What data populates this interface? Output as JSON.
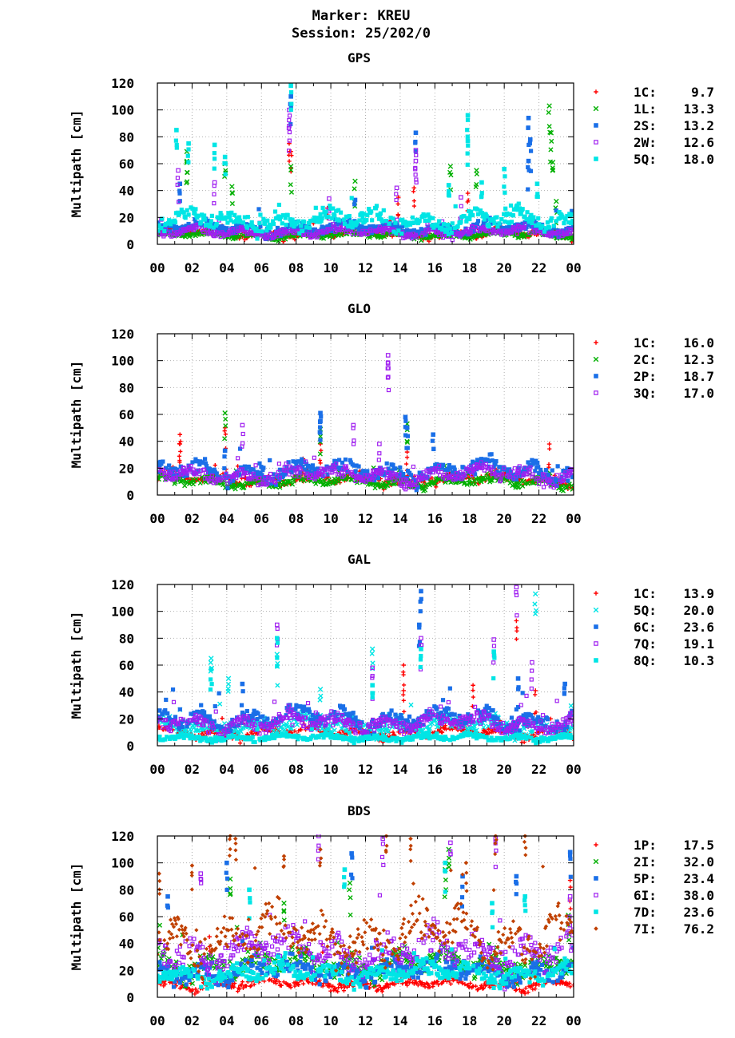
{
  "header": {
    "marker": "Marker: KREU",
    "session": "Session: 25/202/0"
  },
  "style": {
    "marker_colors": {
      "1C": "#ff0000",
      "1L": "#00b000",
      "2S": "#1a6fe8",
      "2W": "#a020f0",
      "5Q": "#00e5e5",
      "2C": "#00b000",
      "2P": "#1a6fe8",
      "3Q": "#a020f0",
      "6C": "#1a6fe8",
      "7Q": "#a020f0",
      "8Q": "#00e5e5",
      "1P": "#ff0000",
      "2I": "#00b000",
      "5P": "#1a6fe8",
      "6I": "#a020f0",
      "7D": "#00e5e5",
      "7I": "#c04000"
    },
    "marker_shapes": [
      "plus",
      "cross",
      "filled-square",
      "open-square",
      "filled-square",
      "filled-diamond"
    ]
  },
  "chart_data": [
    {
      "type": "scatter",
      "title": "GPS",
      "ylabel": "Multipath [cm]",
      "xlabel": "",
      "ylim": [
        0,
        120
      ],
      "yticks": [
        "0",
        "20",
        "40",
        "60",
        "80",
        "100",
        "120"
      ],
      "xticks": [
        "00",
        "02",
        "04",
        "06",
        "08",
        "10",
        "12",
        "14",
        "16",
        "18",
        "20",
        "22",
        "00"
      ],
      "xlim_hours": [
        0,
        24
      ],
      "grid": true,
      "legend_position": "right",
      "series": [
        {
          "name": "1C",
          "stat": "9.7",
          "baseline": 8,
          "spikes": [
            [
              7.6,
              75
            ],
            [
              7.7,
              69
            ],
            [
              9.8,
              27
            ],
            [
              14.8,
              42
            ],
            [
              13.9,
              35
            ],
            [
              17.9,
              38
            ]
          ]
        },
        {
          "name": "1L",
          "stat": "13.3",
          "baseline": 7,
          "spikes": [
            [
              1.7,
              69
            ],
            [
              1.7,
              61
            ],
            [
              3.9,
              60
            ],
            [
              4.3,
              43
            ],
            [
              7.7,
              58
            ],
            [
              11.4,
              47
            ],
            [
              16.9,
              58
            ],
            [
              18.4,
              55
            ],
            [
              22.6,
              103
            ],
            [
              22.7,
              83
            ],
            [
              22.8,
              61
            ],
            [
              23.0,
              32
            ]
          ]
        },
        {
          "name": "2S",
          "stat": "13.2",
          "baseline": 12,
          "spikes": [
            [
              7.7,
              110
            ],
            [
              14.9,
              83
            ],
            [
              21.4,
              94
            ],
            [
              21.5,
              78
            ],
            [
              21.4,
              62
            ],
            [
              1.3,
              45
            ],
            [
              11.4,
              33
            ]
          ]
        },
        {
          "name": "2W",
          "stat": "12.6",
          "baseline": 9,
          "spikes": [
            [
              7.6,
              100
            ],
            [
              7.6,
              88
            ],
            [
              1.2,
              55
            ],
            [
              3.3,
              46
            ],
            [
              14.9,
              70
            ],
            [
              14.9,
              62
            ],
            [
              13.8,
              42
            ],
            [
              9.9,
              34
            ],
            [
              17.5,
              35
            ]
          ]
        },
        {
          "name": "5Q",
          "stat": "18.0",
          "baseline": 18,
          "spikes": [
            [
              1.1,
              85
            ],
            [
              1.8,
              75
            ],
            [
              3.3,
              74
            ],
            [
              3.9,
              65
            ],
            [
              7.7,
              118
            ],
            [
              17.9,
              96
            ],
            [
              17.9,
              77
            ],
            [
              20.0,
              56
            ],
            [
              21.9,
              45
            ],
            [
              16.8,
              44
            ],
            [
              18.7,
              46
            ]
          ]
        }
      ]
    },
    {
      "type": "scatter",
      "title": "GLO",
      "ylabel": "Multipath [cm]",
      "xlabel": "",
      "ylim": [
        0,
        120
      ],
      "yticks": [
        "0",
        "20",
        "40",
        "60",
        "80",
        "100",
        "120"
      ],
      "xticks": [
        "00",
        "02",
        "04",
        "06",
        "08",
        "10",
        "12",
        "14",
        "16",
        "18",
        "20",
        "22",
        "00"
      ],
      "xlim_hours": [
        0,
        24
      ],
      "grid": true,
      "legend_position": "right",
      "series": [
        {
          "name": "1C",
          "stat": "16.0",
          "baseline": 12,
          "spikes": [
            [
              1.3,
              45
            ],
            [
              1.3,
              38
            ],
            [
              3.9,
              50
            ],
            [
              9.4,
              38
            ],
            [
              14.4,
              32
            ],
            [
              22.6,
              38
            ],
            [
              8.4,
              27
            ]
          ]
        },
        {
          "name": "2C",
          "stat": "12.3",
          "baseline": 10,
          "spikes": [
            [
              3.9,
              61
            ],
            [
              9.4,
              49
            ],
            [
              14.4,
              53
            ]
          ]
        },
        {
          "name": "2P",
          "stat": "18.7",
          "baseline": 18,
          "spikes": [
            [
              9.4,
              61
            ],
            [
              9.4,
              55
            ],
            [
              14.3,
              58
            ],
            [
              14.4,
              50
            ],
            [
              15.9,
              45
            ],
            [
              3.9,
              33
            ]
          ]
        },
        {
          "name": "3Q",
          "stat": "17.0",
          "baseline": 15,
          "spikes": [
            [
              13.3,
              104
            ],
            [
              13.3,
              98
            ],
            [
              4.9,
              52
            ],
            [
              11.3,
              52
            ],
            [
              12.8,
              38
            ]
          ]
        }
      ]
    },
    {
      "type": "scatter",
      "title": "GAL",
      "ylabel": "Multipath [cm]",
      "xlabel": "",
      "ylim": [
        0,
        120
      ],
      "yticks": [
        "0",
        "20",
        "40",
        "60",
        "80",
        "100",
        "120"
      ],
      "xticks": [
        "00",
        "02",
        "04",
        "06",
        "08",
        "10",
        "12",
        "14",
        "16",
        "18",
        "20",
        "22",
        "00"
      ],
      "xlim_hours": [
        0,
        24
      ],
      "grid": true,
      "legend_position": "right",
      "series": [
        {
          "name": "1C",
          "stat": "13.9",
          "baseline": 10,
          "spikes": [
            [
              20.7,
              93
            ],
            [
              14.2,
              60
            ],
            [
              18.2,
              45
            ],
            [
              21.8,
              41
            ],
            [
              14.2,
              41
            ]
          ]
        },
        {
          "name": "5Q",
          "stat": "20.0",
          "baseline": 15,
          "spikes": [
            [
              21.8,
              113
            ],
            [
              12.4,
              72
            ],
            [
              3.1,
              65
            ],
            [
              6.9,
              68
            ],
            [
              4.1,
              50
            ],
            [
              9.4,
              42
            ]
          ]
        },
        {
          "name": "6C",
          "stat": "23.6",
          "baseline": 20,
          "spikes": [
            [
              15.2,
              115
            ],
            [
              15.1,
              90
            ],
            [
              20.8,
              50
            ],
            [
              4.9,
              46
            ],
            [
              23.5,
              46
            ]
          ]
        },
        {
          "name": "7Q",
          "stat": "19.1",
          "baseline": 17,
          "spikes": [
            [
              20.7,
              118
            ],
            [
              6.9,
              90
            ],
            [
              15.2,
              80
            ],
            [
              19.4,
              79
            ],
            [
              21.6,
              62
            ],
            [
              12.4,
              58
            ]
          ]
        },
        {
          "name": "8Q",
          "stat": "10.3",
          "baseline": 6,
          "spikes": [
            [
              6.9,
              80
            ],
            [
              15.2,
              72
            ],
            [
              19.4,
              70
            ],
            [
              3.1,
              57
            ],
            [
              12.4,
              45
            ]
          ]
        }
      ]
    },
    {
      "type": "scatter",
      "title": "BDS",
      "ylabel": "Multipath [cm]",
      "xlabel": "",
      "ylim": [
        0,
        120
      ],
      "yticks": [
        "0",
        "20",
        "40",
        "60",
        "80",
        "100",
        "120"
      ],
      "xticks": [
        "00",
        "02",
        "04",
        "06",
        "08",
        "10",
        "12",
        "14",
        "16",
        "18",
        "20",
        "22",
        "00"
      ],
      "xlim_hours": [
        0,
        24
      ],
      "grid": true,
      "legend_position": "right",
      "series": [
        {
          "name": "1P",
          "stat": "17.5",
          "baseline": 10,
          "spikes": [
            [
              23.8,
              87
            ],
            [
              3.0,
              45
            ],
            [
              9.5,
              40
            ]
          ]
        },
        {
          "name": "2I",
          "stat": "32.0",
          "baseline": 25,
          "spikes": [
            [
              16.8,
              110
            ],
            [
              16.6,
              95
            ],
            [
              23.7,
              61
            ],
            [
              4.2,
              88
            ],
            [
              11.1,
              85
            ],
            [
              7.3,
              70
            ]
          ]
        },
        {
          "name": "5P",
          "stat": "23.4",
          "baseline": 20,
          "spikes": [
            [
              23.8,
              108
            ],
            [
              0.6,
              75
            ],
            [
              4.0,
              100
            ],
            [
              11.2,
              107
            ],
            [
              17.6,
              90
            ],
            [
              20.7,
              90
            ]
          ]
        },
        {
          "name": "6I",
          "stat": "38.0",
          "baseline": 35,
          "spikes": [
            [
              9.3,
              120
            ],
            [
              13.0,
              118
            ],
            [
              19.5,
              118
            ],
            [
              23.8,
              75
            ],
            [
              2.5,
              92
            ],
            [
              16.9,
              115
            ]
          ]
        },
        {
          "name": "7D",
          "stat": "23.6",
          "baseline": 18,
          "spikes": [
            [
              5.3,
              80
            ],
            [
              10.8,
              95
            ],
            [
              16.6,
              100
            ],
            [
              19.3,
              70
            ],
            [
              21.2,
              75
            ]
          ]
        },
        {
          "name": "7I",
          "stat": "76.2",
          "baseline": 45,
          "spikes": [
            [
              4.2,
              120
            ],
            [
              4.5,
              118
            ],
            [
              13.2,
              120
            ],
            [
              14.6,
              118
            ],
            [
              19.5,
              120
            ],
            [
              21.2,
              120
            ],
            [
              7.3,
              105
            ],
            [
              9.4,
              110
            ],
            [
              2.0,
              98
            ],
            [
              0.1,
              92
            ],
            [
              17.8,
              100
            ]
          ]
        }
      ]
    }
  ]
}
